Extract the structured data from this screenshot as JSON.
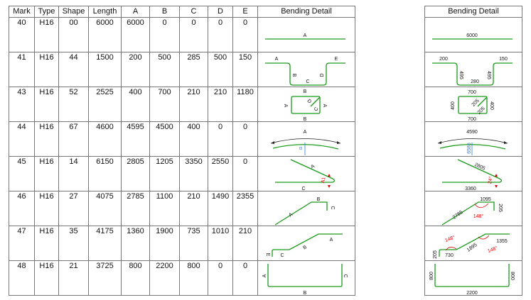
{
  "table": {
    "headers": [
      "Mark",
      "Type",
      "Shape",
      "Length",
      "A",
      "B",
      "C",
      "D",
      "E",
      "Bending Detail"
    ],
    "rows": [
      {
        "mark": "40",
        "type": "H16",
        "shape": "00",
        "length": "6000",
        "a": "6000",
        "b": "0",
        "c": "0",
        "d": "0",
        "e": "0"
      },
      {
        "mark": "41",
        "type": "H16",
        "shape": "44",
        "length": "1500",
        "a": "200",
        "b": "500",
        "c": "285",
        "d": "500",
        "e": "150"
      },
      {
        "mark": "43",
        "type": "H16",
        "shape": "52",
        "length": "2525",
        "a": "400",
        "b": "700",
        "c": "210",
        "d": "210",
        "e": "1180"
      },
      {
        "mark": "44",
        "type": "H16",
        "shape": "67",
        "length": "4600",
        "a": "4595",
        "b": "4500",
        "c": "400",
        "d": "0",
        "e": "0"
      },
      {
        "mark": "45",
        "type": "H16",
        "shape": "14",
        "length": "6150",
        "a": "2805",
        "b": "1205",
        "c": "3350",
        "d": "2550",
        "e": "0"
      },
      {
        "mark": "46",
        "type": "H16",
        "shape": "27",
        "length": "4075",
        "a": "2785",
        "b": "1100",
        "c": "210",
        "d": "1490",
        "e": "2355"
      },
      {
        "mark": "47",
        "type": "H16",
        "shape": "35",
        "length": "4175",
        "a": "1360",
        "b": "1900",
        "c": "735",
        "d": "1010",
        "e": "210"
      },
      {
        "mark": "48",
        "type": "H16",
        "shape": "21",
        "length": "3725",
        "a": "800",
        "b": "2200",
        "c": "800",
        "d": "0",
        "e": "0"
      }
    ]
  },
  "shape_labels": [
    [
      "A"
    ],
    [
      "A",
      "E",
      "B",
      "C",
      "D"
    ],
    [
      "B",
      "B",
      "A",
      "A",
      "D",
      "C"
    ],
    [
      "A",
      "α"
    ],
    [
      "A",
      "C",
      "A1"
    ],
    [
      "A",
      "B",
      "C"
    ],
    [
      "E",
      "C",
      "B",
      "A"
    ],
    [
      "A",
      "C",
      "B"
    ]
  ],
  "side_panel": {
    "header": "Bending Detail",
    "labels": [
      [
        "6000"
      ],
      [
        "200",
        "150",
        "495",
        "280",
        "495"
      ],
      [
        "700",
        "700",
        "400",
        "400",
        "205",
        "205"
      ],
      [
        "4590",
        "6585"
      ],
      [
        "2805",
        "3360",
        "24°"
      ],
      [
        "2785",
        "1095",
        "205",
        "148°"
      ],
      [
        "205",
        "730",
        "1895",
        "1355",
        "148°",
        "148°"
      ],
      [
        "800",
        "800",
        "2200"
      ]
    ]
  },
  "colors": {
    "bar": "#1a9a1a",
    "angle": "#e00000",
    "dimension": "#2b7de9",
    "grid": "#777777"
  }
}
